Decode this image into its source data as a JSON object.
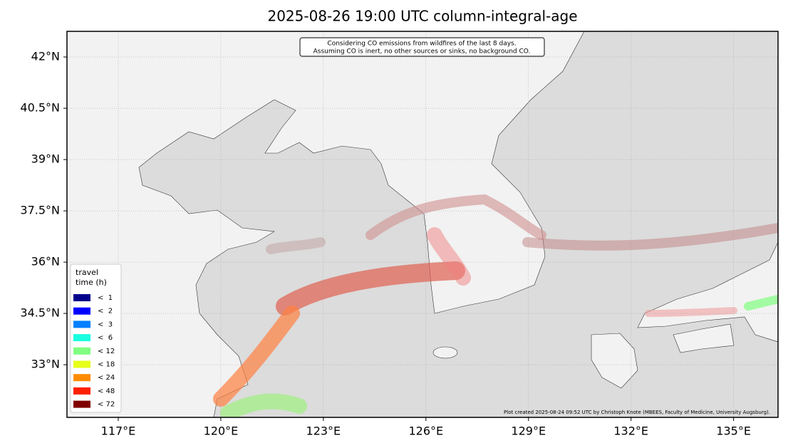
{
  "map": {
    "title": "2025-08-26 19:00 UTC column-integral-age",
    "note": [
      "Considering CO emissions from wildfires of the last 8 days.",
      "Assuming CO is inert, no other sources or sinks, no background CO."
    ],
    "credit": "Plot created 2025-08-24 09:52 UTC by Christoph Knote (MBEES, Faculty of Medicine, University Augsburg).",
    "xlim": [
      115.5,
      136.3
    ],
    "ylim": [
      31.46,
      42.75
    ],
    "xticks": [
      {
        "value": 117,
        "label": "117°E"
      },
      {
        "value": 120,
        "label": "120°E"
      },
      {
        "value": 123,
        "label": "123°E"
      },
      {
        "value": 126,
        "label": "126°E"
      },
      {
        "value": 129,
        "label": "129°E"
      },
      {
        "value": 132,
        "label": "132°E"
      },
      {
        "value": 135,
        "label": "135°E"
      }
    ],
    "yticks": [
      {
        "value": 33,
        "label": "33°N"
      },
      {
        "value": 34.5,
        "label": "34.5°N"
      },
      {
        "value": 36,
        "label": "36°N"
      },
      {
        "value": 37.5,
        "label": "37.5°N"
      },
      {
        "value": 39,
        "label": "39°N"
      },
      {
        "value": 40.5,
        "label": "40.5°N"
      },
      {
        "value": 42,
        "label": "42°N"
      }
    ],
    "grid": true,
    "legend": {
      "title": [
        "travel",
        "time (h)"
      ],
      "items": [
        {
          "label": "<  1",
          "color": "#00008b"
        },
        {
          "label": "<  2",
          "color": "#0000ff"
        },
        {
          "label": "<  3",
          "color": "#0080ff"
        },
        {
          "label": "<  6",
          "color": "#19ffe0"
        },
        {
          "label": "< 12",
          "color": "#80ff80"
        },
        {
          "label": "< 18",
          "color": "#e6ff1a"
        },
        {
          "label": "< 24",
          "color": "#ff8c00"
        },
        {
          "label": "< 48",
          "color": "#ff2000"
        },
        {
          "label": "< 72",
          "color": "#800000"
        }
      ]
    }
  }
}
